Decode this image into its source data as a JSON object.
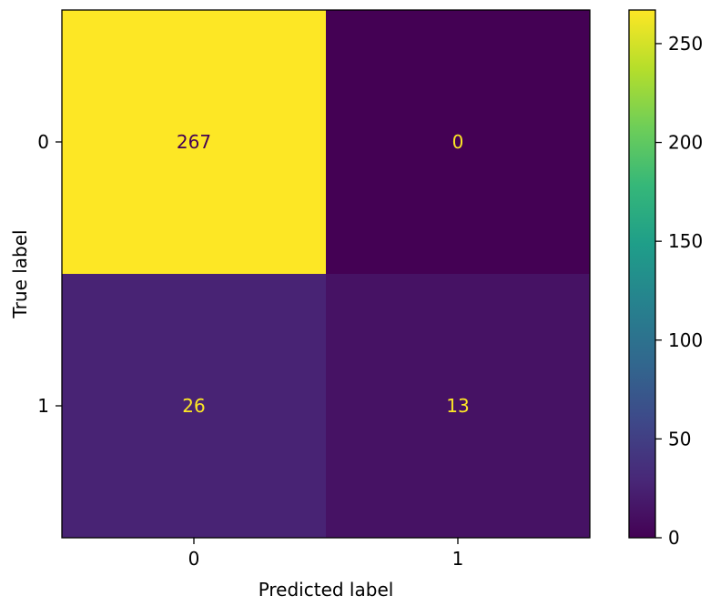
{
  "chart_data": {
    "type": "heatmap",
    "xlabel": "Predicted label",
    "ylabel": "True label",
    "x_categories": [
      "0",
      "1"
    ],
    "y_categories": [
      "0",
      "1"
    ],
    "values": [
      [
        267,
        0
      ],
      [
        26,
        13
      ]
    ],
    "colormap": "viridis",
    "colorbar": {
      "min": 0,
      "max": 267,
      "ticks": [
        0,
        50,
        100,
        150,
        200,
        250
      ]
    },
    "annotation_colors": {
      "on_light": "#440154",
      "on_dark": "#fde725"
    }
  }
}
